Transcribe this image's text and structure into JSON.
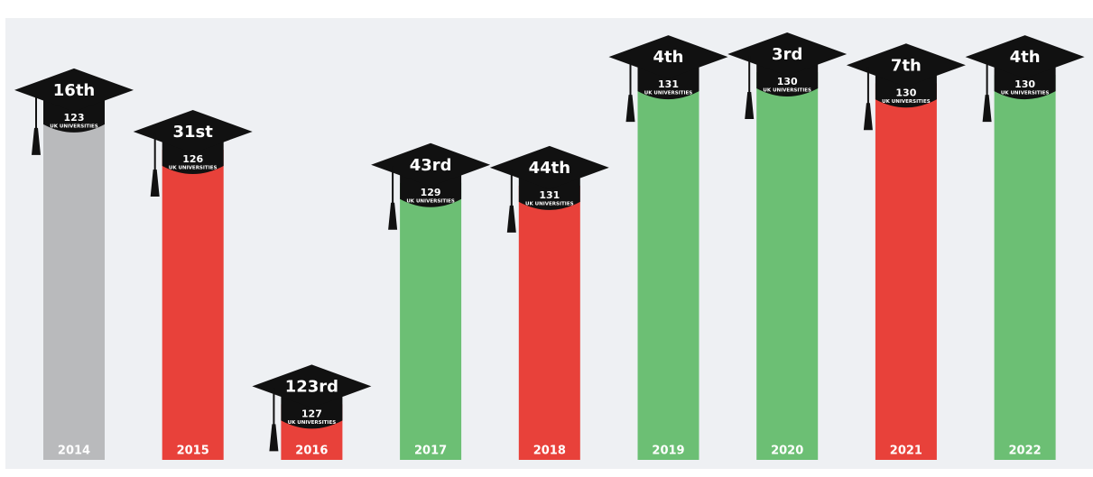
{
  "chart_data": {
    "type": "bar",
    "categories": [
      "2014",
      "2015",
      "2016",
      "2017",
      "2018",
      "2019",
      "2020",
      "2021",
      "2022"
    ],
    "values": [
      16,
      31,
      123,
      43,
      44,
      4,
      3,
      7,
      4
    ],
    "value_labels": [
      "16th",
      "31st",
      "123rd",
      "43rd",
      "44th",
      "4th",
      "3rd",
      "7th",
      "4th"
    ],
    "colors": [
      "#b9babc",
      "#e8413a",
      "#e8413a",
      "#6cbf74",
      "#e8413a",
      "#6cbf74",
      "#6cbf74",
      "#e8413a",
      "#6cbf74"
    ],
    "totals": [
      123,
      126,
      127,
      129,
      131,
      131,
      130,
      130,
      130
    ],
    "totals_label": "UK UNIVERSITIES"
  }
}
